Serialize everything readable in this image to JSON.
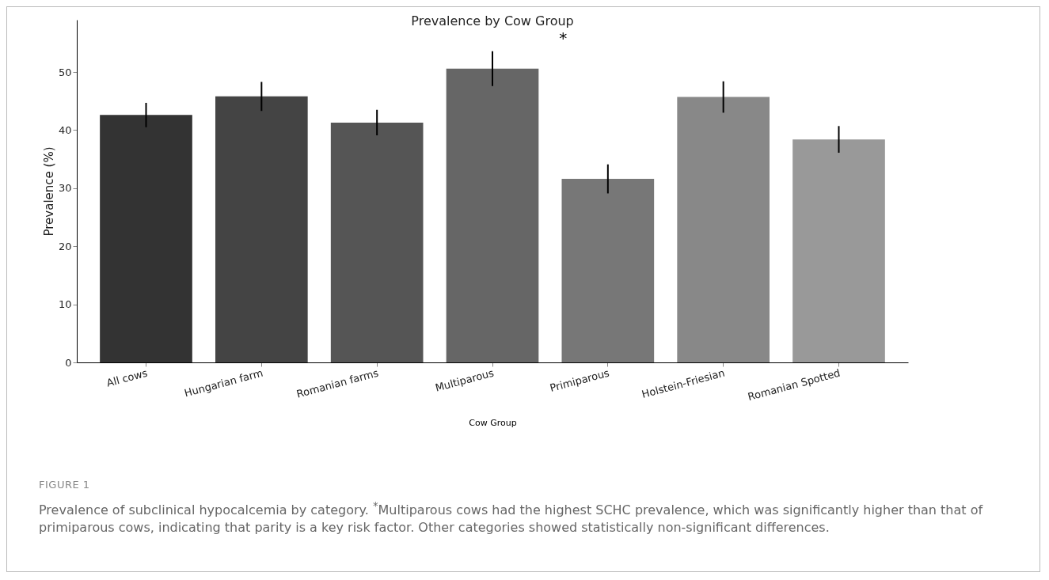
{
  "chart_data": {
    "type": "bar",
    "title": "Prevalence by Cow Group",
    "xlabel": "Cow Group",
    "ylabel": "Prevalence (%)",
    "categories": [
      "All cows",
      "Hungarian farm",
      "Romanian farms",
      "Multiparous",
      "Primiparous",
      "Holstein-Friesian",
      "Romanian Spotted"
    ],
    "values": [
      42.6,
      45.8,
      41.3,
      50.6,
      31.6,
      45.7,
      38.4
    ],
    "errors": [
      2.1,
      2.5,
      2.2,
      3,
      2.5,
      2.7,
      2.3
    ],
    "colors": [
      "#333333",
      "#444444",
      "#555555",
      "#666666",
      "#777777",
      "#888888",
      "#999999"
    ],
    "ylim": [
      0,
      59
    ],
    "yticks": [
      0,
      10,
      20,
      30,
      40,
      50
    ],
    "grid": false,
    "annotations": [
      "*",
      "FIGURE 1",
      "Prevalence of subclinical hypocalcemia by category. $^{*}$Multiparous cows had the highest SCHC prevalence, which was significantly higher than that of primiparous cows, indicating that parity is a key risk factor. Other categories showed statistically non-significant differences."
    ]
  }
}
